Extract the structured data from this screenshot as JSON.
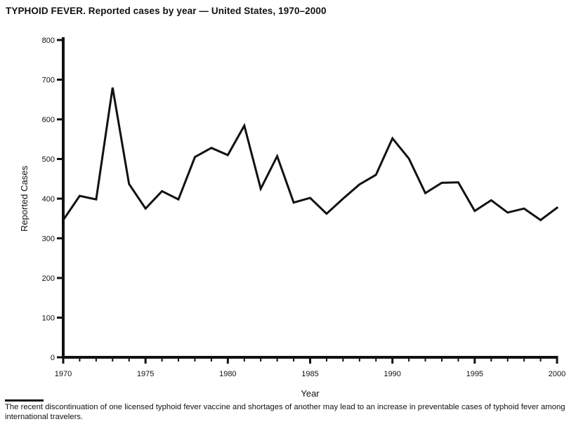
{
  "chart_data": {
    "type": "line",
    "title": "TYPHOID FEVER. Reported cases by year — United States, 1970–2000",
    "xlabel": "Year",
    "ylabel": "Reported Cases",
    "x": [
      1970,
      1971,
      1972,
      1973,
      1974,
      1975,
      1976,
      1977,
      1978,
      1979,
      1980,
      1981,
      1982,
      1983,
      1984,
      1985,
      1986,
      1987,
      1988,
      1989,
      1990,
      1991,
      1992,
      1993,
      1994,
      1995,
      1996,
      1997,
      1998,
      1999,
      2000
    ],
    "values": [
      346,
      407,
      398,
      680,
      437,
      375,
      419,
      398,
      505,
      528,
      510,
      584,
      425,
      507,
      390,
      402,
      362,
      400,
      436,
      460,
      552,
      501,
      414,
      440,
      441,
      369,
      396,
      365,
      375,
      346,
      377
    ],
    "xlim": [
      1970,
      2000
    ],
    "ylim": [
      0,
      800
    ],
    "y_ticks": [
      0,
      100,
      200,
      300,
      400,
      500,
      600,
      700,
      800
    ],
    "x_major_ticks": [
      1970,
      1975,
      1980,
      1985,
      1990,
      1995,
      2000
    ],
    "x_minor_tick_step": 1,
    "grid": false,
    "legend": "none",
    "line_color": "#111111",
    "axis_color": "#111111",
    "footnote": "The recent discontinuation of one licensed typhoid fever vaccine and shortages of another may lead to an increase in preventable cases of typhoid fever among international travelers."
  }
}
